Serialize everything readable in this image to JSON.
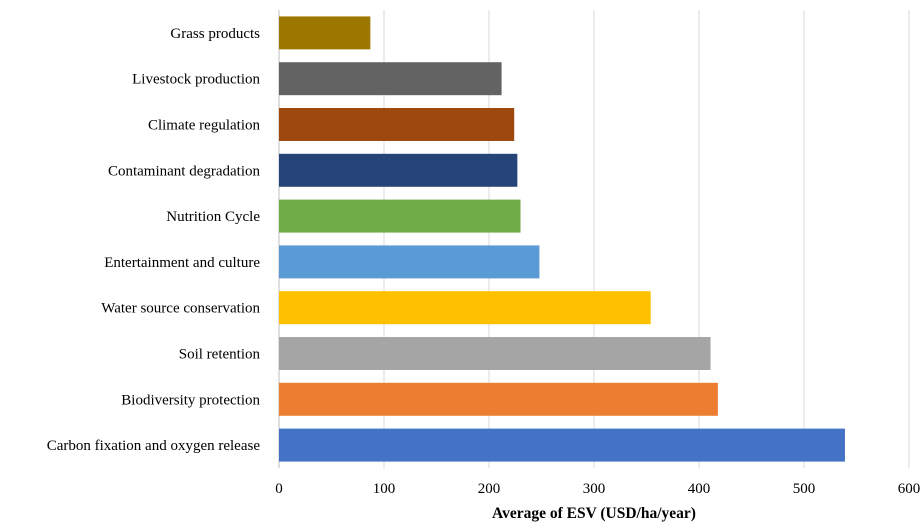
{
  "chart_data": {
    "type": "bar",
    "orientation": "horizontal",
    "title": "",
    "xlabel": "Average of ESV (USD/ha/year)",
    "ylabel": "",
    "xlim": [
      0,
      600
    ],
    "x_ticks": [
      0,
      100,
      200,
      300,
      400,
      500,
      600
    ],
    "grid": "vertical gridlines on",
    "legend": "none",
    "categories": [
      "Grass products",
      "Livestock production",
      "Climate regulation",
      "Contaminant degradation",
      "Nutrition Cycle",
      "Entertainment and culture",
      "Water source conservation",
      "Soil retention",
      "Biodiversity protection",
      "Carbon fixation and oxygen release"
    ],
    "values": [
      87,
      212,
      224,
      227,
      230,
      248,
      354,
      411,
      418,
      539
    ],
    "colors": [
      "#9c7700",
      "#636363",
      "#9e480e",
      "#264478",
      "#70ad47",
      "#5b9bd5",
      "#ffc000",
      "#a5a5a5",
      "#ed7d31",
      "#4472c4"
    ]
  }
}
